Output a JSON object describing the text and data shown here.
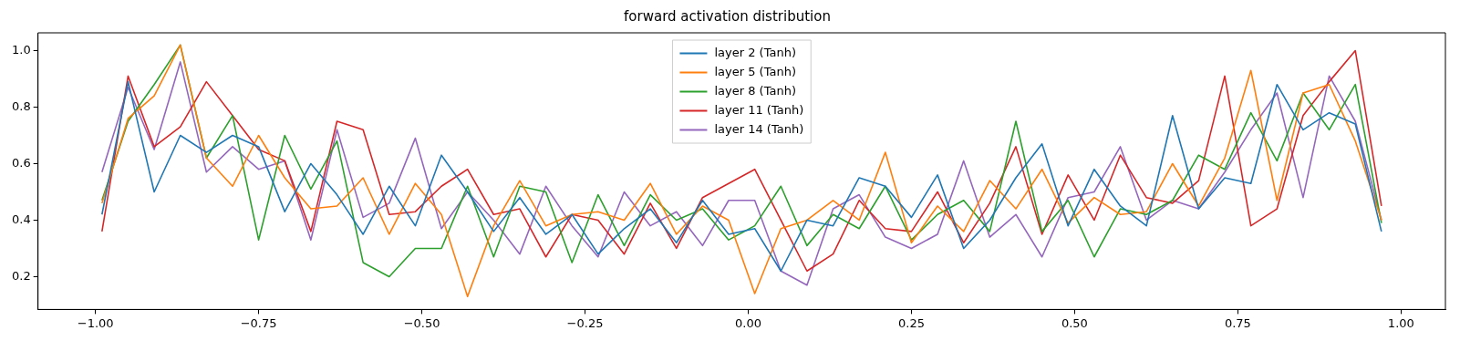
{
  "chart_data": {
    "type": "line",
    "title": "forward activation distribution",
    "x": [
      -0.99,
      -0.95,
      -0.91,
      -0.87,
      -0.83,
      -0.79,
      -0.75,
      -0.71,
      -0.67,
      -0.63,
      -0.59,
      -0.55,
      -0.51,
      -0.47,
      -0.43,
      -0.39,
      -0.35,
      -0.31,
      -0.27,
      -0.23,
      -0.19,
      -0.15,
      -0.11,
      -0.07,
      -0.03,
      0.01,
      0.05,
      0.09,
      0.13,
      0.17,
      0.21,
      0.25,
      0.29,
      0.33,
      0.37,
      0.41,
      0.45,
      0.49,
      0.53,
      0.57,
      0.61,
      0.65,
      0.69,
      0.73,
      0.77,
      0.81,
      0.85,
      0.89,
      0.93,
      0.97
    ],
    "series": [
      {
        "name": "layer 2 (Tanh)",
        "color": "#1f77b4",
        "values": [
          0.42,
          0.89,
          0.5,
          0.7,
          0.64,
          0.7,
          0.66,
          0.43,
          0.6,
          0.49,
          0.35,
          0.52,
          0.38,
          0.63,
          0.5,
          0.36,
          0.48,
          0.35,
          0.42,
          0.28,
          0.37,
          0.44,
          0.32,
          0.47,
          0.35,
          0.37,
          0.22,
          0.4,
          0.38,
          0.55,
          0.52,
          0.41,
          0.56,
          0.3,
          0.4,
          0.55,
          0.67,
          0.38,
          0.58,
          0.45,
          0.38,
          0.77,
          0.44,
          0.55,
          0.53,
          0.88,
          0.72,
          0.78,
          0.74,
          0.36
        ]
      },
      {
        "name": "layer 5 (Tanh)",
        "color": "#ff7f0e",
        "values": [
          0.46,
          0.76,
          0.84,
          1.02,
          0.62,
          0.52,
          0.7,
          0.55,
          0.44,
          0.45,
          0.55,
          0.35,
          0.53,
          0.42,
          0.13,
          0.38,
          0.54,
          0.38,
          0.42,
          0.43,
          0.4,
          0.53,
          0.35,
          0.45,
          0.4,
          0.14,
          0.37,
          0.4,
          0.47,
          0.4,
          0.64,
          0.32,
          0.45,
          0.36,
          0.54,
          0.44,
          0.58,
          0.39,
          0.48,
          0.42,
          0.43,
          0.6,
          0.45,
          0.62,
          0.93,
          0.47,
          0.85,
          0.88,
          0.68,
          0.4
        ]
      },
      {
        "name": "layer 8 (Tanh)",
        "color": "#2ca02c",
        "values": [
          0.47,
          0.75,
          0.88,
          1.02,
          0.62,
          0.77,
          0.33,
          0.7,
          0.51,
          0.68,
          0.25,
          0.2,
          0.3,
          0.3,
          0.52,
          0.27,
          0.52,
          0.5,
          0.25,
          0.49,
          0.31,
          0.49,
          0.4,
          0.44,
          0.33,
          0.38,
          0.52,
          0.31,
          0.42,
          0.37,
          0.52,
          0.33,
          0.42,
          0.47,
          0.36,
          0.75,
          0.36,
          0.47,
          0.27,
          0.44,
          0.42,
          0.47,
          0.63,
          0.58,
          0.78,
          0.61,
          0.85,
          0.72,
          0.88,
          0.39
        ]
      },
      {
        "name": "layer 11 (Tanh)",
        "color": "#d62728",
        "values": [
          0.36,
          0.91,
          0.66,
          0.73,
          0.89,
          0.77,
          0.65,
          0.61,
          0.36,
          0.75,
          0.72,
          0.42,
          0.43,
          0.52,
          0.58,
          0.42,
          0.44,
          0.27,
          0.42,
          0.4,
          0.28,
          0.46,
          0.3,
          0.48,
          0.53,
          0.58,
          0.4,
          0.22,
          0.28,
          0.47,
          0.37,
          0.36,
          0.5,
          0.32,
          0.46,
          0.66,
          0.35,
          0.56,
          0.4,
          0.63,
          0.48,
          0.46,
          0.54,
          0.91,
          0.38,
          0.44,
          0.77,
          0.89,
          1.0,
          0.45
        ]
      },
      {
        "name": "layer 14 (Tanh)",
        "color": "#9467bd",
        "values": [
          0.57,
          0.87,
          0.65,
          0.96,
          0.57,
          0.66,
          0.58,
          0.61,
          0.33,
          0.72,
          0.41,
          0.46,
          0.69,
          0.37,
          0.5,
          0.4,
          0.28,
          0.52,
          0.38,
          0.27,
          0.5,
          0.38,
          0.43,
          0.31,
          0.47,
          0.47,
          0.22,
          0.17,
          0.44,
          0.49,
          0.34,
          0.3,
          0.35,
          0.61,
          0.34,
          0.42,
          0.27,
          0.48,
          0.5,
          0.66,
          0.4,
          0.47,
          0.44,
          0.57,
          0.72,
          0.85,
          0.48,
          0.91,
          0.75,
          0.4
        ]
      }
    ],
    "xlim": [
      -1.088,
      1.068
    ],
    "ylim": [
      0.084,
      1.063
    ],
    "xticks": [
      {
        "value": -1,
        "label": "−1.00"
      },
      {
        "value": -0.75,
        "label": "−0.75"
      },
      {
        "value": -0.5,
        "label": "−0.50"
      },
      {
        "value": -0.25,
        "label": "−0.25"
      },
      {
        "value": 0,
        "label": "0.00"
      },
      {
        "value": 0.25,
        "label": "0.25"
      },
      {
        "value": 0.5,
        "label": "0.50"
      },
      {
        "value": 0.75,
        "label": "0.75"
      },
      {
        "value": 1,
        "label": "1.00"
      }
    ],
    "yticks": [
      {
        "value": 0.2,
        "label": "0.2"
      },
      {
        "value": 0.4,
        "label": "0.4"
      },
      {
        "value": 0.6,
        "label": "0.6"
      },
      {
        "value": 0.8,
        "label": "0.8"
      },
      {
        "value": 1,
        "label": "1.0"
      }
    ],
    "grid": false,
    "legend": "top",
    "marker": "none",
    "line_style": "solid"
  }
}
